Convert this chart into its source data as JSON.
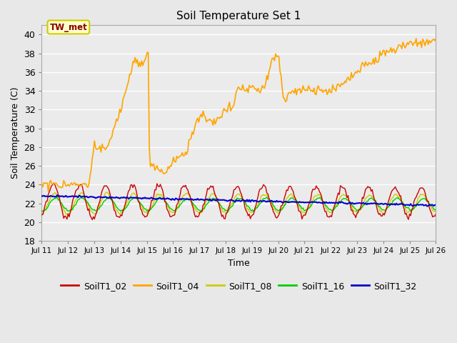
{
  "title": "Soil Temperature Set 1",
  "xlabel": "Time",
  "ylabel": "Soil Temperature (C)",
  "ylim": [
    18,
    41
  ],
  "yticks": [
    18,
    20,
    22,
    24,
    26,
    28,
    30,
    32,
    34,
    36,
    38,
    40
  ],
  "colors": {
    "SoilT1_02": "#cc0000",
    "SoilT1_04": "#ffa500",
    "SoilT1_08": "#cccc00",
    "SoilT1_16": "#00cc00",
    "SoilT1_32": "#0000cc"
  },
  "annotation_text": "TW_met",
  "annotation_bg": "#ffffcc",
  "annotation_border": "#cccc00",
  "annotation_fg": "#880000",
  "bg_color": "#e8e8e8",
  "plot_bg": "#ebebeb",
  "grid_color": "#ffffff",
  "figsize": [
    6.4,
    4.8
  ],
  "dpi": 100
}
